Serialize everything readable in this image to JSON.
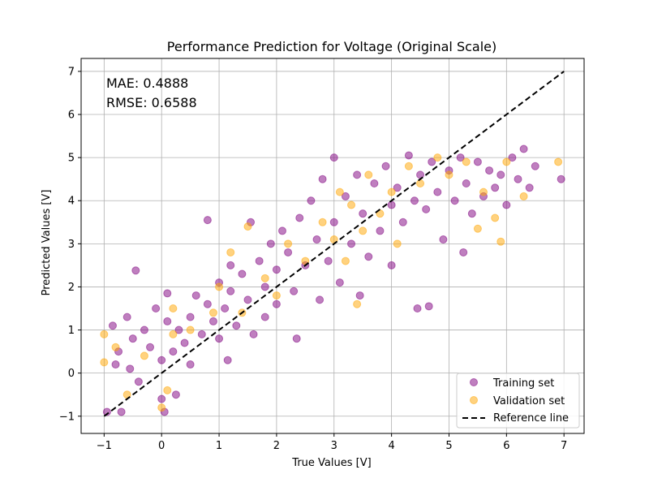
{
  "chart_data": {
    "type": "scatter",
    "title": "Performance Prediction for Voltage (Original Scale)",
    "xlabel": "True Values [V]",
    "ylabel": "Predicted Values [V]",
    "xlim": [
      -1.4,
      7.35
    ],
    "ylim": [
      -1.4,
      7.3
    ],
    "xticks": [
      -1,
      0,
      1,
      2,
      3,
      4,
      5,
      6,
      7
    ],
    "yticks": [
      -1,
      0,
      1,
      2,
      3,
      4,
      5,
      6,
      7
    ],
    "grid": true,
    "legend_position": "lower-right",
    "annotations": [
      "MAE: 0.4888",
      "RMSE: 0.6588"
    ],
    "series": [
      {
        "name": "Training set",
        "color": "#800080",
        "marker": "circle",
        "alpha": 0.5,
        "points": [
          [
            -0.95,
            -0.9
          ],
          [
            -0.85,
            1.1
          ],
          [
            -0.8,
            0.2
          ],
          [
            -0.75,
            0.5
          ],
          [
            -0.7,
            -0.9
          ],
          [
            -0.6,
            1.3
          ],
          [
            -0.55,
            0.1
          ],
          [
            -0.5,
            0.8
          ],
          [
            -0.45,
            2.38
          ],
          [
            -0.4,
            -0.2
          ],
          [
            -0.3,
            1.0
          ],
          [
            -0.2,
            0.6
          ],
          [
            -0.1,
            1.5
          ],
          [
            0.0,
            -0.6
          ],
          [
            0.0,
            0.3
          ],
          [
            0.05,
            -0.9
          ],
          [
            0.1,
            1.2
          ],
          [
            0.1,
            1.85
          ],
          [
            0.2,
            0.5
          ],
          [
            0.25,
            -0.5
          ],
          [
            0.3,
            1.0
          ],
          [
            0.4,
            0.7
          ],
          [
            0.5,
            1.3
          ],
          [
            0.5,
            0.2
          ],
          [
            0.6,
            1.8
          ],
          [
            0.7,
            0.9
          ],
          [
            0.8,
            1.6
          ],
          [
            0.8,
            3.55
          ],
          [
            0.9,
            1.2
          ],
          [
            1.0,
            0.8
          ],
          [
            1.0,
            2.1
          ],
          [
            1.1,
            1.5
          ],
          [
            1.15,
            0.3
          ],
          [
            1.2,
            1.9
          ],
          [
            1.2,
            2.5
          ],
          [
            1.3,
            1.1
          ],
          [
            1.4,
            2.3
          ],
          [
            1.5,
            1.7
          ],
          [
            1.55,
            3.5
          ],
          [
            1.6,
            0.9
          ],
          [
            1.7,
            2.6
          ],
          [
            1.8,
            2.0
          ],
          [
            1.8,
            1.3
          ],
          [
            1.9,
            3.0
          ],
          [
            2.0,
            2.4
          ],
          [
            2.0,
            1.6
          ],
          [
            2.1,
            3.3
          ],
          [
            2.2,
            2.8
          ],
          [
            2.3,
            1.9
          ],
          [
            2.35,
            0.8
          ],
          [
            2.4,
            3.6
          ],
          [
            2.5,
            2.5
          ],
          [
            2.6,
            4.0
          ],
          [
            2.7,
            3.1
          ],
          [
            2.75,
            1.7
          ],
          [
            2.8,
            4.5
          ],
          [
            2.9,
            2.6
          ],
          [
            3.0,
            3.5
          ],
          [
            3.0,
            5.0
          ],
          [
            3.1,
            2.1
          ],
          [
            3.2,
            4.1
          ],
          [
            3.3,
            3.0
          ],
          [
            3.4,
            4.6
          ],
          [
            3.45,
            1.8
          ],
          [
            3.5,
            3.7
          ],
          [
            3.6,
            2.7
          ],
          [
            3.7,
            4.4
          ],
          [
            3.8,
            3.3
          ],
          [
            3.9,
            4.8
          ],
          [
            4.0,
            3.9
          ],
          [
            4.0,
            2.5
          ],
          [
            4.1,
            4.3
          ],
          [
            4.2,
            3.5
          ],
          [
            4.3,
            5.05
          ],
          [
            4.4,
            4.0
          ],
          [
            4.45,
            1.5
          ],
          [
            4.5,
            4.6
          ],
          [
            4.6,
            3.8
          ],
          [
            4.65,
            1.55
          ],
          [
            4.7,
            4.9
          ],
          [
            4.8,
            4.2
          ],
          [
            4.9,
            3.1
          ],
          [
            5.0,
            4.7
          ],
          [
            5.1,
            4.0
          ],
          [
            5.2,
            5.0
          ],
          [
            5.3,
            4.4
          ],
          [
            5.4,
            3.7
          ],
          [
            5.5,
            4.9
          ],
          [
            5.6,
            4.1
          ],
          [
            5.7,
            4.7
          ],
          [
            5.8,
            4.3
          ],
          [
            5.9,
            4.6
          ],
          [
            6.0,
            3.9
          ],
          [
            6.1,
            5.0
          ],
          [
            6.2,
            4.5
          ],
          [
            6.3,
            5.2
          ],
          [
            6.4,
            4.3
          ],
          [
            6.5,
            4.8
          ],
          [
            6.95,
            4.5
          ],
          [
            5.25,
            2.8
          ]
        ]
      },
      {
        "name": "Validation set",
        "color": "#ffa500",
        "marker": "circle",
        "alpha": 0.5,
        "points": [
          [
            -1.0,
            0.9
          ],
          [
            -1.0,
            0.25
          ],
          [
            -0.8,
            0.6
          ],
          [
            -0.6,
            -0.5
          ],
          [
            -0.3,
            0.4
          ],
          [
            0.0,
            -0.8
          ],
          [
            0.1,
            -0.4
          ],
          [
            0.2,
            0.9
          ],
          [
            0.2,
            1.5
          ],
          [
            0.5,
            1.0
          ],
          [
            0.9,
            1.4
          ],
          [
            1.0,
            2.0
          ],
          [
            1.2,
            2.8
          ],
          [
            1.4,
            1.4
          ],
          [
            1.5,
            3.4
          ],
          [
            1.8,
            2.2
          ],
          [
            2.0,
            1.8
          ],
          [
            2.2,
            3.0
          ],
          [
            2.5,
            2.6
          ],
          [
            2.8,
            3.5
          ],
          [
            3.0,
            3.1
          ],
          [
            3.1,
            4.2
          ],
          [
            3.2,
            2.6
          ],
          [
            3.3,
            3.9
          ],
          [
            3.5,
            3.3
          ],
          [
            3.6,
            4.6
          ],
          [
            3.8,
            3.7
          ],
          [
            4.0,
            4.2
          ],
          [
            4.1,
            3.0
          ],
          [
            4.3,
            4.8
          ],
          [
            4.5,
            4.4
          ],
          [
            4.8,
            5.0
          ],
          [
            5.0,
            4.6
          ],
          [
            5.3,
            4.9
          ],
          [
            5.5,
            3.35
          ],
          [
            5.6,
            4.2
          ],
          [
            5.8,
            3.6
          ],
          [
            6.0,
            4.9
          ],
          [
            6.3,
            4.1
          ],
          [
            6.9,
            4.9
          ],
          [
            5.9,
            3.05
          ],
          [
            3.4,
            1.6
          ]
        ]
      },
      {
        "name": "Reference line",
        "color": "#000000",
        "style": "dashed",
        "points": [
          [
            -1,
            -1
          ],
          [
            7,
            7
          ]
        ]
      }
    ]
  }
}
